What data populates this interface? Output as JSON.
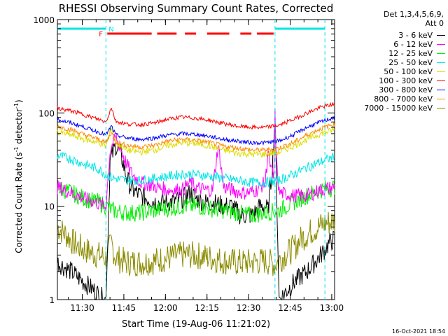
{
  "chart_data": {
    "type": "line",
    "title": "RHESSI Observing Summary Count Rates, Corrected",
    "xlabel": "Start Time (19-Aug-06 11:21:02)",
    "ylabel_main": "Corrected Count Rate (s",
    "ylabel_sup1": "-1",
    "ylabel_mid": " detector",
    "ylabel_sup2": "-1",
    "ylabel_end": ")",
    "y_scale": "log",
    "ylim": [
      1,
      1000
    ],
    "xlim_minutes": [
      0,
      100
    ],
    "x_ticks": [
      {
        "label": "11:30",
        "minute": 8.97
      },
      {
        "label": "11:45",
        "minute": 23.97
      },
      {
        "label": "12:00",
        "minute": 38.97
      },
      {
        "label": "12:15",
        "minute": 53.97
      },
      {
        "label": "12:30",
        "minute": 68.97
      },
      {
        "label": "12:45",
        "minute": 83.97
      },
      {
        "label": "13:00",
        "minute": 98.97
      }
    ],
    "y_ticks": [
      {
        "label": "1",
        "value": 1
      },
      {
        "label": "10",
        "value": 10
      },
      {
        "label": "100",
        "value": 100
      },
      {
        "label": "1000",
        "value": 1000
      }
    ],
    "legend_header": [
      "Det 1,3,4,5,6,9,",
      "Att 0"
    ],
    "series": [
      {
        "name": "3 - 6 keV",
        "color": "#000000",
        "x": [
          0,
          5,
          10,
          14,
          17,
          17.5,
          19,
          21,
          23,
          25,
          27,
          30,
          33,
          36,
          40,
          45,
          48,
          50,
          53,
          56,
          60,
          63,
          66,
          69,
          70,
          72,
          73,
          75,
          76,
          77.5,
          78,
          78.5,
          80,
          85,
          90,
          95,
          98,
          100
        ],
        "y": [
          2.5,
          2.0,
          1.5,
          1.2,
          1.0,
          1.0,
          30,
          45,
          35,
          20,
          15,
          13,
          12,
          11,
          11,
          12,
          14,
          12,
          11,
          11,
          10,
          10,
          8,
          8,
          8,
          9,
          10,
          10,
          9,
          25,
          50,
          90,
          1.0,
          1.5,
          2.0,
          3.0,
          4.0,
          4.5
        ]
      },
      {
        "name": "6 - 12 keV",
        "color": "#ff00ff",
        "x": [
          0,
          5,
          10,
          14,
          17,
          17.5,
          19,
          21,
          23,
          25,
          27,
          30,
          33,
          36,
          40,
          45,
          48,
          50,
          53,
          56,
          58,
          60,
          63,
          66,
          69,
          72,
          75,
          76,
          77,
          78,
          78.5,
          79,
          80,
          85,
          90,
          95,
          100
        ],
        "y": [
          16,
          14,
          12,
          11,
          10,
          10,
          40,
          55,
          40,
          28,
          22,
          18,
          17,
          16,
          15,
          15,
          18,
          16,
          15,
          15,
          45,
          16,
          15,
          14,
          14,
          15,
          18,
          40,
          25,
          20,
          95,
          30,
          14,
          13,
          13,
          15,
          16
        ]
      },
      {
        "name": "12 - 25 keV",
        "color": "#00ee00",
        "x": [
          0,
          5,
          10,
          15,
          17.5,
          20,
          25,
          30,
          35,
          40,
          45,
          50,
          55,
          60,
          65,
          70,
          75,
          80,
          85,
          90,
          95,
          100
        ],
        "y": [
          16,
          14,
          12,
          11,
          10,
          9,
          8.5,
          8.5,
          9,
          9.5,
          10,
          10,
          9.5,
          9,
          8.5,
          8,
          8.5,
          9,
          11,
          13,
          15,
          16
        ]
      },
      {
        "name": "25 - 50 keV",
        "color": "#00e5e5",
        "x": [
          0,
          5,
          10,
          15,
          17.5,
          20,
          25,
          30,
          35,
          40,
          45,
          50,
          55,
          60,
          65,
          70,
          75,
          80,
          85,
          90,
          95,
          100
        ],
        "y": [
          35,
          32,
          28,
          25,
          22,
          20,
          19,
          19,
          20,
          21,
          22,
          22,
          21,
          20,
          19,
          18,
          18,
          19,
          22,
          26,
          30,
          34
        ]
      },
      {
        "name": "50 - 100 keV",
        "color": "#dddd00",
        "x": [
          0,
          5,
          10,
          15,
          17.5,
          19.5,
          21,
          25,
          30,
          35,
          40,
          45,
          50,
          55,
          60,
          65,
          70,
          75,
          80,
          85,
          90,
          95,
          100
        ],
        "y": [
          62,
          58,
          52,
          48,
          44,
          70,
          48,
          40,
          38,
          40,
          45,
          48,
          47,
          44,
          40,
          37,
          36,
          36,
          38,
          44,
          52,
          60,
          66
        ]
      },
      {
        "name": "100 - 300 keV",
        "color": "#ff0000",
        "x": [
          0,
          5,
          10,
          15,
          17.5,
          19.5,
          21,
          25,
          30,
          35,
          40,
          45,
          50,
          55,
          60,
          65,
          70,
          75,
          80,
          85,
          90,
          95,
          100
        ],
        "y": [
          112,
          105,
          95,
          85,
          80,
          115,
          82,
          76,
          75,
          78,
          86,
          90,
          88,
          83,
          77,
          72,
          70,
          70,
          74,
          85,
          100,
          115,
          125
        ]
      },
      {
        "name": "300 - 800 keV",
        "color": "#0000ff",
        "x": [
          0,
          5,
          10,
          15,
          17.5,
          19.5,
          21,
          25,
          30,
          35,
          40,
          45,
          50,
          55,
          60,
          65,
          70,
          75,
          80,
          85,
          90,
          95,
          100
        ],
        "y": [
          85,
          78,
          70,
          62,
          58,
          72,
          58,
          54,
          52,
          54,
          58,
          60,
          59,
          56,
          52,
          50,
          48,
          48,
          50,
          58,
          70,
          80,
          90
        ]
      },
      {
        "name": "800 - 7000 keV",
        "color": "#ff8c00",
        "x": [
          0,
          5,
          10,
          15,
          17.5,
          19.5,
          21,
          25,
          30,
          35,
          40,
          45,
          50,
          55,
          60,
          65,
          70,
          75,
          80,
          85,
          90,
          95,
          100
        ],
        "y": [
          72,
          66,
          58,
          52,
          48,
          62,
          49,
          45,
          43,
          45,
          50,
          52,
          51,
          48,
          44,
          42,
          40,
          40,
          42,
          48,
          58,
          68,
          76
        ]
      },
      {
        "name": "7000 - 15000 keV",
        "color": "#8b8b00",
        "x": [
          0,
          3,
          6,
          9,
          12,
          15,
          17.5,
          19.5,
          21,
          25,
          30,
          35,
          40,
          45,
          50,
          55,
          60,
          65,
          70,
          75,
          78.5,
          82,
          85,
          88,
          92,
          96,
          100
        ],
        "y": [
          6,
          5,
          4,
          3.5,
          3.2,
          3,
          2.8,
          4,
          2.8,
          2.5,
          2.5,
          2.6,
          2.8,
          3,
          3,
          2.8,
          2.6,
          2.5,
          2.5,
          2.6,
          2.4,
          3,
          3.5,
          4.5,
          5.5,
          6.5,
          7
        ]
      }
    ],
    "flags": {
      "night_label": "N",
      "flare_label": "F",
      "night_intervals": [
        [
          0,
          17.5
        ],
        [
          78.5,
          96.5
        ]
      ],
      "flare_intervals": [
        [
          18,
          34
        ],
        [
          36,
          43
        ],
        [
          46,
          50
        ],
        [
          54,
          62
        ],
        [
          66,
          70
        ],
        [
          72,
          78
        ]
      ],
      "marker_lines": [
        17.5,
        78.5,
        96.5
      ]
    }
  },
  "timestamp": "16-Oct-2021 18:54"
}
